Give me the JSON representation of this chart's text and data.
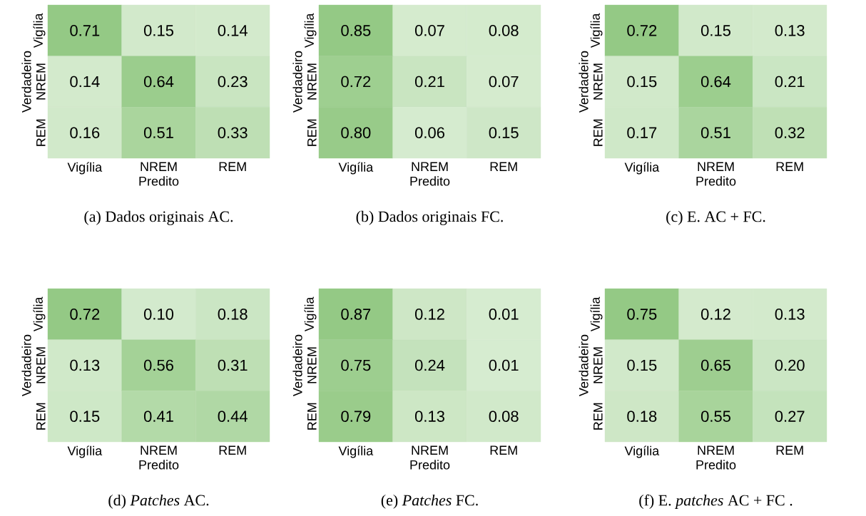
{
  "chart_data": [
    {
      "type": "heatmap",
      "categories": [
        "Vigília",
        "NREM",
        "REM"
      ],
      "y_categories": [
        "Vigília",
        "NREM",
        "REM"
      ],
      "xlabel": "Predito",
      "ylabel": "Verdadeiro",
      "data_labels": true,
      "annotations": [
        "(a) Dados originais AC."
      ],
      "cells": [
        [
          0.71,
          0.15,
          0.14
        ],
        [
          0.14,
          0.64,
          0.23
        ],
        [
          0.16,
          0.51,
          0.33
        ]
      ],
      "cell_labels": [
        [
          "0.71",
          "0.15",
          "0.14"
        ],
        [
          "0.14",
          "0.64",
          "0.23"
        ],
        [
          "0.16",
          "0.51",
          "0.33"
        ]
      ]
    },
    {
      "type": "heatmap",
      "categories": [
        "Vigília",
        "NREM",
        "REM"
      ],
      "y_categories": [
        "Vigília",
        "NREM",
        "REM"
      ],
      "xlabel": "Predito",
      "ylabel": "Verdadeiro",
      "data_labels": true,
      "annotations": [
        "(b) Dados originais FC."
      ],
      "cells": [
        [
          0.85,
          0.07,
          0.08
        ],
        [
          0.72,
          0.21,
          0.07
        ],
        [
          0.8,
          0.06,
          0.15
        ]
      ],
      "cell_labels": [
        [
          "0.85",
          "0.07",
          "0.08"
        ],
        [
          "0.72",
          "0.21",
          "0.07"
        ],
        [
          "0.80",
          "0.06",
          "0.15"
        ]
      ]
    },
    {
      "type": "heatmap",
      "categories": [
        "Vigília",
        "NREM",
        "REM"
      ],
      "y_categories": [
        "Vigília",
        "NREM",
        "REM"
      ],
      "xlabel": "Predito",
      "ylabel": "Verdadeiro",
      "data_labels": true,
      "annotations": [
        "(c) E. AC + FC."
      ],
      "cells": [
        [
          0.72,
          0.15,
          0.13
        ],
        [
          0.15,
          0.64,
          0.21
        ],
        [
          0.17,
          0.51,
          0.32
        ]
      ],
      "cell_labels": [
        [
          "0.72",
          "0.15",
          "0.13"
        ],
        [
          "0.15",
          "0.64",
          "0.21"
        ],
        [
          "0.17",
          "0.51",
          "0.32"
        ]
      ]
    },
    {
      "type": "heatmap",
      "categories": [
        "Vigília",
        "NREM",
        "REM"
      ],
      "y_categories": [
        "Vigília",
        "NREM",
        "REM"
      ],
      "xlabel": "Predito",
      "ylabel": "Verdadeiro",
      "data_labels": true,
      "annotations": [
        "(d) *Patches* AC."
      ],
      "cells": [
        [
          0.72,
          0.1,
          0.18
        ],
        [
          0.13,
          0.56,
          0.31
        ],
        [
          0.15,
          0.41,
          0.44
        ]
      ],
      "cell_labels": [
        [
          "0.72",
          "0.10",
          "0.18"
        ],
        [
          "0.13",
          "0.56",
          "0.31"
        ],
        [
          "0.15",
          "0.41",
          "0.44"
        ]
      ]
    },
    {
      "type": "heatmap",
      "categories": [
        "Vigília",
        "NREM",
        "REM"
      ],
      "y_categories": [
        "Vigília",
        "NREM",
        "REM"
      ],
      "xlabel": "Predito",
      "ylabel": "Verdadeiro",
      "data_labels": true,
      "annotations": [
        "(e) *Patches* FC."
      ],
      "cells": [
        [
          0.87,
          0.12,
          0.01
        ],
        [
          0.75,
          0.24,
          0.01
        ],
        [
          0.79,
          0.13,
          0.08
        ]
      ],
      "cell_labels": [
        [
          "0.87",
          "0.12",
          "0.01"
        ],
        [
          "0.75",
          "0.24",
          "0.01"
        ],
        [
          "0.79",
          "0.13",
          "0.08"
        ]
      ]
    },
    {
      "type": "heatmap",
      "categories": [
        "Vigília",
        "NREM",
        "REM"
      ],
      "y_categories": [
        "Vigília",
        "NREM",
        "REM"
      ],
      "xlabel": "Predito",
      "ylabel": "Verdadeiro",
      "data_labels": true,
      "annotations": [
        "(f) E. *patches* AC + FC ."
      ],
      "cells": [
        [
          0.75,
          0.12,
          0.13
        ],
        [
          0.15,
          0.65,
          0.2
        ],
        [
          0.18,
          0.55,
          0.27
        ]
      ],
      "cell_labels": [
        [
          "0.75",
          "0.12",
          "0.13"
        ],
        [
          "0.15",
          "0.65",
          "0.20"
        ],
        [
          "0.18",
          "0.55",
          "0.27"
        ]
      ]
    }
  ]
}
